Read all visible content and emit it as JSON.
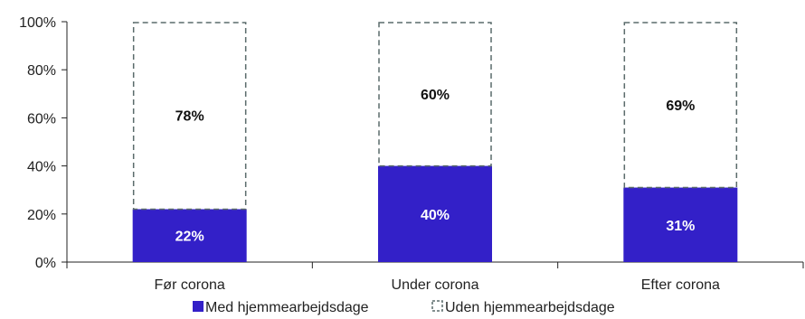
{
  "chart_data": {
    "type": "bar",
    "stacked": true,
    "categories": [
      "Før corona",
      "Under corona",
      "Efter corona"
    ],
    "series": [
      {
        "name": "Med hjemmearbejdsdage",
        "values": [
          22,
          40,
          31
        ],
        "color": "#3320c8",
        "style": "solid"
      },
      {
        "name": "Uden hjemmearbejdsdage",
        "values": [
          78,
          60,
          69
        ],
        "color": "#5a6b6b",
        "style": "dashed-outline"
      }
    ],
    "data_labels": {
      "Med hjemmearbejdsdage": [
        "22%",
        "40%",
        "31%"
      ],
      "Uden hjemmearbejdsdage": [
        "78%",
        "60%",
        "69%"
      ]
    },
    "yticks": [
      "0%",
      "20%",
      "40%",
      "60%",
      "80%",
      "100%"
    ],
    "ylim": [
      0,
      100
    ],
    "legend_position": "bottom",
    "grid": false
  }
}
